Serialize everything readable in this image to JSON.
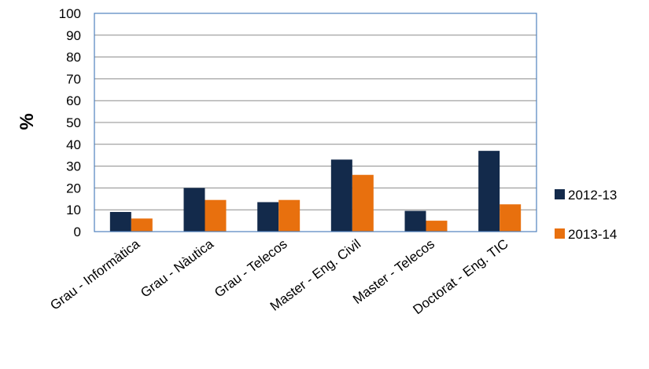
{
  "chart_data": {
    "type": "bar",
    "categories": [
      "Grau - Informàtica",
      "Grau - Nàutica",
      "Grau - Telecos",
      "Master - Eng. Civil",
      "Master - Telecos",
      "Doctorat - Eng. TIC"
    ],
    "series": [
      {
        "name": "2012-13",
        "values": [
          9,
          20,
          13.5,
          33,
          9.5,
          37
        ],
        "color": "#132a4b"
      },
      {
        "name": "2013-14",
        "values": [
          6,
          14.5,
          14.5,
          26,
          5,
          12.5
        ],
        "color": "#e8700e"
      }
    ],
    "ylabel": "%",
    "ylim": [
      0,
      100
    ],
    "yticks": [
      0,
      10,
      20,
      30,
      40,
      50,
      60,
      70,
      80,
      90,
      100
    ],
    "grid": true,
    "legend_position": "right",
    "colors": {
      "grid": "#8c8c8c",
      "plot_border": "#4f81bd"
    }
  }
}
